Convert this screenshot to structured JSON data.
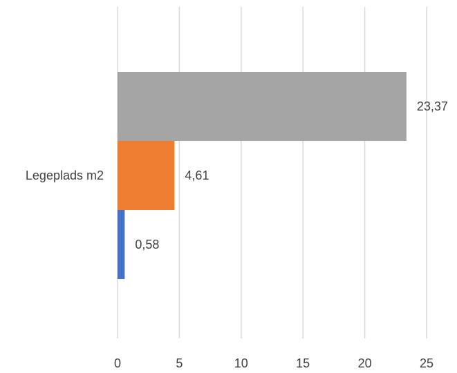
{
  "chart_data": {
    "type": "bar",
    "orientation": "horizontal",
    "categories": [
      "Legeplads m2"
    ],
    "series": [
      {
        "values": [
          23.37
        ],
        "color": "#a5a5a5",
        "label": "23,37"
      },
      {
        "values": [
          4.61
        ],
        "color": "#ed7d31",
        "label": "4,61"
      },
      {
        "values": [
          0.58
        ],
        "color": "#4472c4",
        "label": "0,58"
      }
    ],
    "xlim": [
      0,
      25
    ],
    "xticks": [
      0,
      5,
      10,
      15,
      20,
      25
    ],
    "xtick_labels": [
      "0",
      "5",
      "10",
      "15",
      "20",
      "25"
    ],
    "grid": true,
    "legend": "none",
    "title": "",
    "xlabel": "",
    "ylabel": ""
  }
}
